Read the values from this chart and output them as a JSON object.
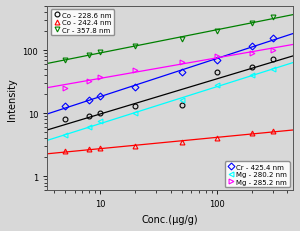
{
  "title": "",
  "xlabel": "Conc.(μg/g)",
  "ylabel": "Intensity",
  "xlim": [
    3.5,
    450
  ],
  "ylim": [
    0.6,
    500
  ],
  "background_color": "#d8d8d8",
  "series": [
    {
      "label": "Co - 228.6 nm",
      "color": "black",
      "marker": "o",
      "line_style": "-",
      "x": [
        5,
        8,
        10,
        20,
        50,
        100,
        200,
        300
      ],
      "y": [
        8.0,
        9.0,
        10.0,
        13.0,
        13.5,
        45,
        55,
        72
      ]
    },
    {
      "label": "Co - 242.4 nm",
      "color": "red",
      "marker": "^",
      "line_style": "-",
      "x": [
        5,
        8,
        10,
        20,
        50,
        100,
        200,
        300
      ],
      "y": [
        2.5,
        2.7,
        2.8,
        3.0,
        3.5,
        4.0,
        4.8,
        5.3
      ]
    },
    {
      "label": "Cr - 357.8 nm",
      "color": "green",
      "marker": "v",
      "line_style": "-",
      "x": [
        5,
        8,
        10,
        20,
        50,
        100,
        200,
        300
      ],
      "y": [
        70,
        85,
        95,
        115,
        150,
        200,
        270,
        340
      ]
    },
    {
      "label": "Cr - 425.4 nm",
      "color": "blue",
      "marker": "D",
      "line_style": "-",
      "x": [
        5,
        8,
        10,
        20,
        50,
        100,
        200,
        300
      ],
      "y": [
        13,
        16,
        19,
        26,
        45,
        70,
        115,
        155
      ]
    },
    {
      "label": "Mg - 280.2 nm",
      "color": "cyan",
      "marker": "<",
      "line_style": "-",
      "x": [
        5,
        8,
        10,
        20,
        50,
        100,
        200,
        300
      ],
      "y": [
        4.5,
        6.0,
        7.5,
        10,
        16,
        28,
        40,
        50
      ]
    },
    {
      "label": "Mg - 285.2 nm",
      "color": "magenta",
      "marker": ">",
      "line_style": "-",
      "x": [
        5,
        8,
        10,
        20,
        50,
        100,
        200,
        300
      ],
      "y": [
        25,
        33,
        38,
        48,
        65,
        80,
        90,
        100
      ]
    }
  ],
  "legend1_entries": [
    0,
    1,
    2
  ],
  "legend2_entries": [
    3,
    4,
    5
  ]
}
